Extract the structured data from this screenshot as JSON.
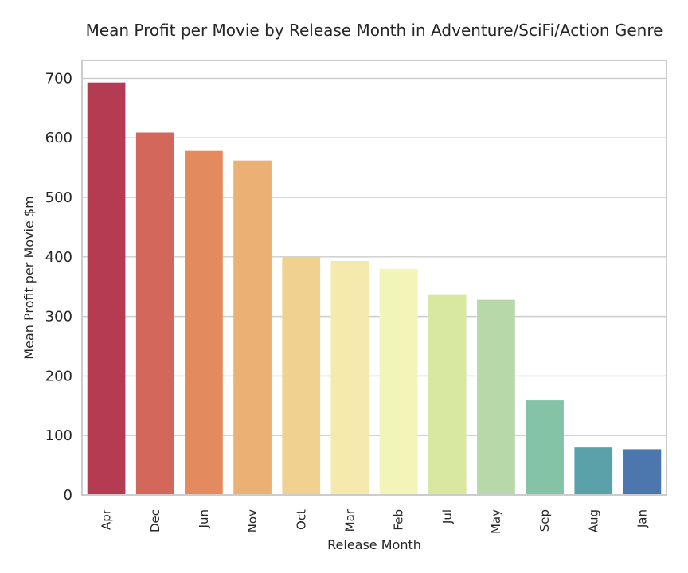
{
  "chart_data": {
    "type": "bar",
    "title": "Mean Profit per Movie by Release Month in Adventure/SciFi/Action Genre",
    "xlabel": "Release Month",
    "ylabel": "Mean Profit per Movie $m",
    "categories": [
      "Apr",
      "Dec",
      "Jun",
      "Nov",
      "Oct",
      "Mar",
      "Feb",
      "Jul",
      "May",
      "Sep",
      "Aug",
      "Jan"
    ],
    "values": [
      693,
      609,
      578,
      562,
      400,
      393,
      380,
      336,
      328,
      159,
      80,
      77
    ],
    "ylim": [
      0,
      730
    ],
    "yticks": [
      0,
      100,
      200,
      300,
      400,
      500,
      600,
      700
    ],
    "grid": "horizontal",
    "colors": [
      "#b53b52",
      "#d4675b",
      "#e38a5f",
      "#ebb074",
      "#f1d18f",
      "#f5e9ad",
      "#f2f4b8",
      "#d9e8a0",
      "#b7d8a8",
      "#84c3a6",
      "#5ba1aa",
      "#4b77ae"
    ]
  }
}
